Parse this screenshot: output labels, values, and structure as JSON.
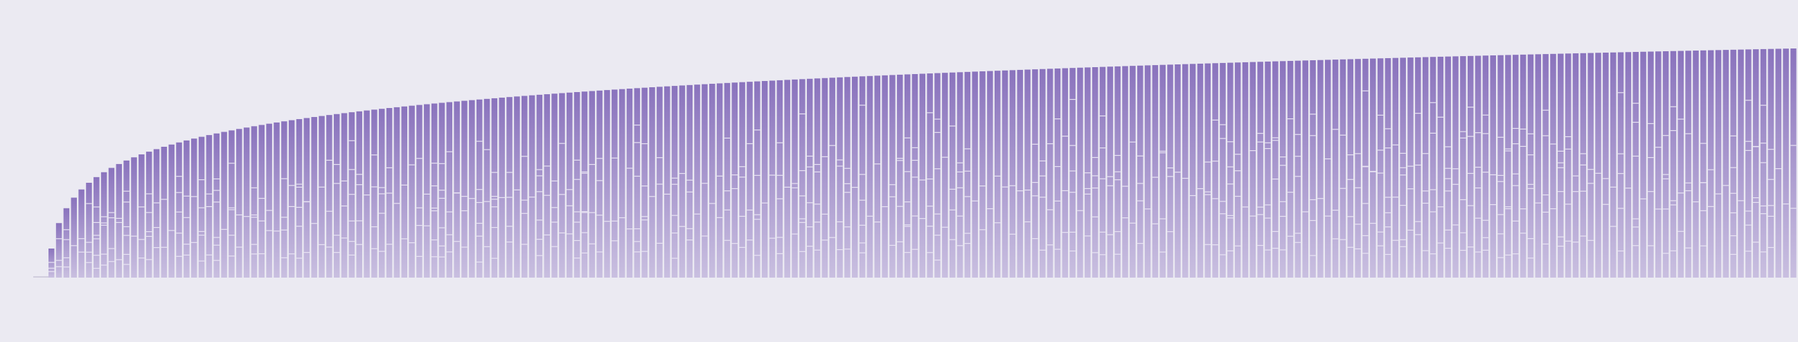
{
  "chart_data": {
    "type": "bar",
    "title": "",
    "xlabel": "",
    "ylabel": "",
    "bar_color_top": "#8a73bd",
    "bar_color_bottom": "#c9bfe0",
    "background": "#ebeaf2",
    "axis_color": "#b5b0c8",
    "n": 233,
    "curve": "logarithmic",
    "ymax": 330,
    "bands": [
      40,
      80,
      120,
      160,
      200,
      240,
      280
    ],
    "grid": false,
    "legend": "none"
  }
}
